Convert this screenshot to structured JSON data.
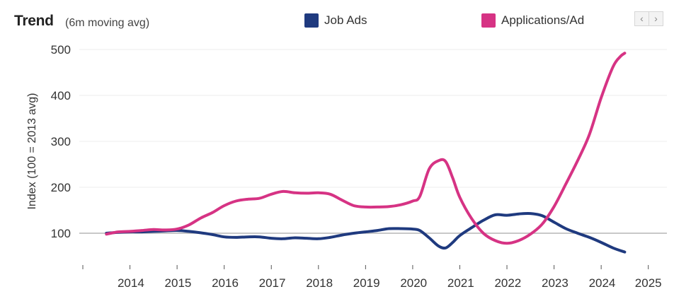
{
  "header": {
    "title": "Trend",
    "subtitle": "(6m moving avg)"
  },
  "navigation": {
    "prev_label": "‹",
    "next_label": "›"
  },
  "chart_data": {
    "type": "line",
    "title": "Trend",
    "subtitle": "(6m moving avg)",
    "xlabel": "",
    "ylabel": "Index (100 = 2013 avg)",
    "ylim": [
      50,
      500
    ],
    "yticks": [
      100,
      200,
      300,
      400,
      500
    ],
    "xlim": [
      2013.0,
      2025.35
    ],
    "xticks": [
      "2014",
      "2015",
      "2016",
      "2017",
      "2018",
      "2019",
      "2020",
      "2021",
      "2022",
      "2023",
      "2024",
      "2025"
    ],
    "reference_line": 100,
    "legend_position": "top",
    "series": [
      {
        "name": "Job Ads",
        "color": "#1f3a7f",
        "x": [
          2013.5,
          2013.75,
          2014.0,
          2014.25,
          2014.5,
          2014.75,
          2015.0,
          2015.25,
          2015.5,
          2015.75,
          2016.0,
          2016.25,
          2016.5,
          2016.75,
          2017.0,
          2017.25,
          2017.5,
          2017.75,
          2018.0,
          2018.25,
          2018.5,
          2018.75,
          2019.0,
          2019.25,
          2019.5,
          2019.75,
          2020.0,
          2020.15,
          2020.35,
          2020.55,
          2020.7,
          2020.85,
          2021.0,
          2021.25,
          2021.5,
          2021.75,
          2022.0,
          2022.25,
          2022.5,
          2022.75,
          2023.0,
          2023.25,
          2023.5,
          2023.75,
          2024.0,
          2024.25,
          2024.5
        ],
        "values": [
          100,
          102,
          103,
          103,
          104,
          105,
          106,
          104,
          101,
          97,
          92,
          91,
          92,
          92,
          89,
          88,
          90,
          89,
          88,
          91,
          96,
          100,
          103,
          106,
          110,
          110,
          109,
          106,
          90,
          72,
          68,
          80,
          95,
          112,
          128,
          140,
          139,
          142,
          143,
          138,
          124,
          110,
          100,
          91,
          80,
          68,
          59
        ]
      },
      {
        "name": "Applications/Ad",
        "color": "#d63384",
        "x": [
          2013.5,
          2013.75,
          2014.0,
          2014.25,
          2014.5,
          2014.75,
          2015.0,
          2015.25,
          2015.5,
          2015.75,
          2016.0,
          2016.25,
          2016.5,
          2016.75,
          2017.0,
          2017.25,
          2017.5,
          2017.75,
          2018.0,
          2018.25,
          2018.5,
          2018.75,
          2019.0,
          2019.25,
          2019.5,
          2019.75,
          2020.0,
          2020.15,
          2020.35,
          2020.55,
          2020.7,
          2020.85,
          2021.0,
          2021.25,
          2021.5,
          2021.75,
          2022.0,
          2022.25,
          2022.5,
          2022.75,
          2023.0,
          2023.25,
          2023.5,
          2023.75,
          2024.0,
          2024.25,
          2024.4,
          2024.5
        ],
        "values": [
          98,
          103,
          104,
          106,
          108,
          107,
          109,
          118,
          133,
          145,
          160,
          170,
          174,
          176,
          185,
          191,
          188,
          187,
          188,
          185,
          172,
          160,
          157,
          157,
          158,
          162,
          170,
          180,
          240,
          258,
          256,
          220,
          178,
          132,
          100,
          84,
          78,
          84,
          98,
          120,
          158,
          207,
          258,
          315,
          395,
          462,
          484,
          492
        ]
      }
    ]
  }
}
